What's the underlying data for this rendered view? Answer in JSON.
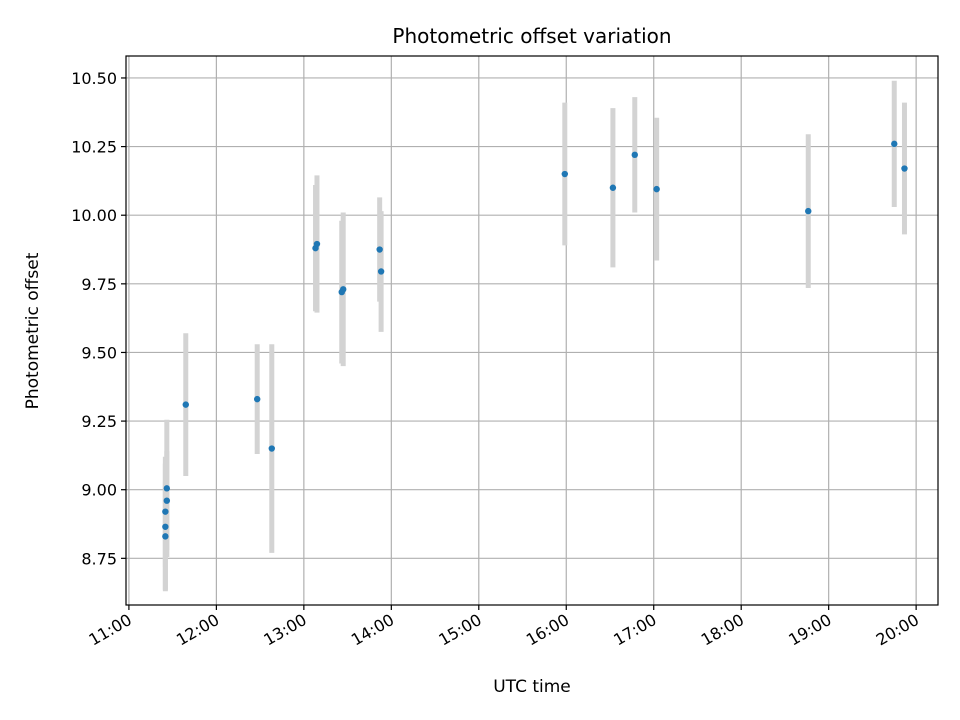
{
  "chart_data": {
    "type": "scatter",
    "title": "Photometric offset variation",
    "xlabel": "UTC time",
    "ylabel": "Photometric offset",
    "xlim": [
      "10:58",
      "20:15"
    ],
    "ylim": [
      8.58,
      10.58
    ],
    "x_ticks": [
      "11:00",
      "12:00",
      "13:00",
      "14:00",
      "15:00",
      "16:00",
      "17:00",
      "18:00",
      "19:00",
      "20:00"
    ],
    "y_ticks": [
      "8.75",
      "9.00",
      "9.25",
      "9.50",
      "9.75",
      "10.00",
      "10.25",
      "10.50"
    ],
    "grid": true,
    "point_color": "#1f77b4",
    "errorbar_color": "#d3d3d3",
    "points": [
      {
        "time": "11:25",
        "y": 8.83,
        "err": 0.2
      },
      {
        "time": "11:25",
        "y": 8.865,
        "err": 0.23
      },
      {
        "time": "11:25",
        "y": 8.92,
        "err": 0.2
      },
      {
        "time": "11:26",
        "y": 8.96,
        "err": 0.18
      },
      {
        "time": "11:26",
        "y": 9.005,
        "err": 0.25
      },
      {
        "time": "11:39",
        "y": 9.31,
        "err": 0.26
      },
      {
        "time": "12:28",
        "y": 9.33,
        "err": 0.2
      },
      {
        "time": "12:38",
        "y": 9.15,
        "err": 0.38
      },
      {
        "time": "13:08",
        "y": 9.88,
        "err": 0.23
      },
      {
        "time": "13:09",
        "y": 9.895,
        "err": 0.25
      },
      {
        "time": "13:26",
        "y": 9.72,
        "err": 0.26
      },
      {
        "time": "13:27",
        "y": 9.73,
        "err": 0.28
      },
      {
        "time": "13:52",
        "y": 9.875,
        "err": 0.19
      },
      {
        "time": "13:53",
        "y": 9.795,
        "err": 0.22
      },
      {
        "time": "15:59",
        "y": 10.15,
        "err": 0.26
      },
      {
        "time": "16:32",
        "y": 10.1,
        "err": 0.29
      },
      {
        "time": "16:47",
        "y": 10.22,
        "err": 0.21
      },
      {
        "time": "17:02",
        "y": 10.095,
        "err": 0.26
      },
      {
        "time": "18:46",
        "y": 10.015,
        "err": 0.28
      },
      {
        "time": "19:45",
        "y": 10.26,
        "err": 0.23
      },
      {
        "time": "19:52",
        "y": 10.17,
        "err": 0.24
      }
    ]
  }
}
